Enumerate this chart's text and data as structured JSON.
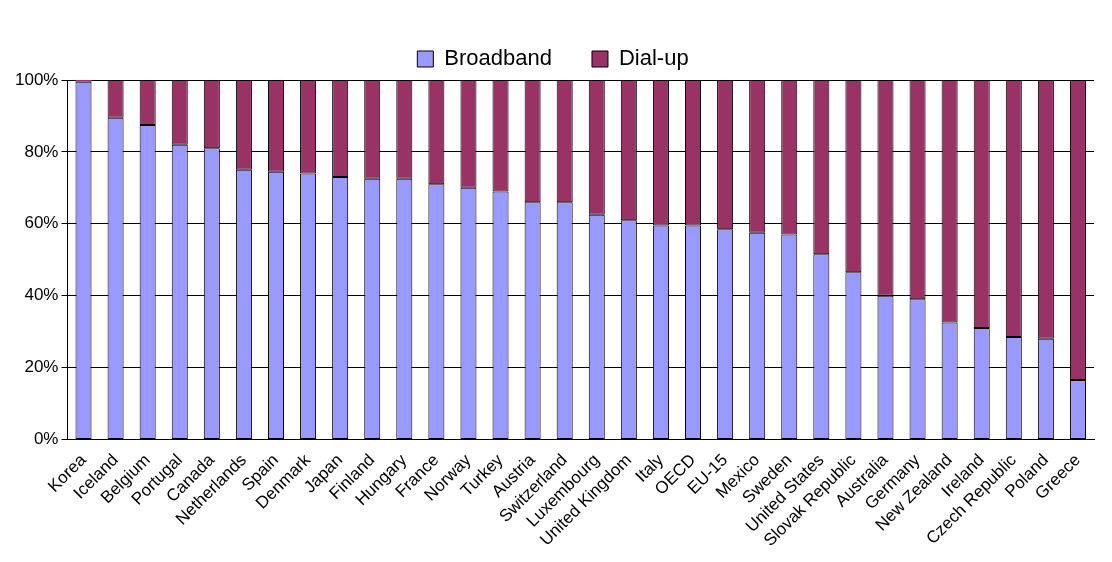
{
  "chart_data": {
    "type": "bar",
    "stacked": true,
    "categories": [
      "Korea",
      "Iceland",
      "Belgium",
      "Portugal",
      "Canada",
      "Netherlands",
      "Spain",
      "Denmark",
      "Japan",
      "Finland",
      "Hungary",
      "France",
      "Norway",
      "Turkey",
      "Austria",
      "Switzerland",
      "Luxembourg",
      "United Kingdom",
      "Italy",
      "OECD",
      "EU-15",
      "Mexico",
      "Sweden",
      "United States",
      "Slovak Republic",
      "Australia",
      "Germany",
      "New Zealand",
      "Ireland",
      "Czech Republic",
      "Poland",
      "Greece"
    ],
    "series": [
      {
        "name": "Broadband",
        "color": "#9999ff",
        "values": [
          99.5,
          89.5,
          87.5,
          82,
          81,
          75,
          74.5,
          74,
          73,
          72.5,
          72.5,
          71,
          70,
          69,
          66,
          66,
          62.5,
          61,
          59.5,
          59.5,
          58.5,
          57.5,
          57,
          51.5,
          46.5,
          40,
          39,
          32.5,
          31,
          28.5,
          28,
          16.5
        ]
      },
      {
        "name": "Dial-up",
        "color": "#993366",
        "values": [
          0.5,
          10.5,
          12.5,
          18,
          19,
          25,
          25.5,
          26,
          27,
          27.5,
          27.5,
          29,
          30,
          31,
          34,
          34,
          37.5,
          39,
          40.5,
          40.5,
          41.5,
          42.5,
          43,
          48.5,
          53.5,
          60,
          61,
          67.5,
          69,
          71.5,
          72,
          83.5
        ]
      }
    ],
    "ylim": [
      0,
      100
    ],
    "yticks": [
      {
        "value": 0,
        "label": "0%"
      },
      {
        "value": 20,
        "label": "20%"
      },
      {
        "value": 40,
        "label": "40%"
      },
      {
        "value": 60,
        "label": "60%"
      },
      {
        "value": 80,
        "label": "80%"
      },
      {
        "value": 100,
        "label": "100%"
      }
    ],
    "grid": "y",
    "legend": "top"
  }
}
